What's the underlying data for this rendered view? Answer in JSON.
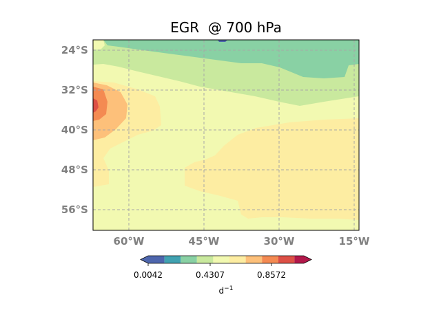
{
  "title": "EGR  @ 700 hPa",
  "map": {
    "lat_labels": [
      "24°S",
      "32°S",
      "40°S",
      "48°S",
      "56°S"
    ],
    "lon_labels": [
      "60°W",
      "45°W",
      "30°W",
      "15°W"
    ],
    "extent": {
      "lon_min": -67,
      "lon_max": -14,
      "lat_min": -61,
      "lat_max": -22
    },
    "gridlines": true
  },
  "colorbar": {
    "colors": [
      "#4e66ad",
      "#41a2b1",
      "#89d1a4",
      "#c9e99e",
      "#f2f9b1",
      "#fdeda2",
      "#fdc07a",
      "#f48a52",
      "#dd5046",
      "#b2184a"
    ],
    "ticks": [
      "0.0042",
      "0.4307",
      "0.8572"
    ],
    "unit": "d",
    "unit_exp": "−1",
    "extend": "both"
  },
  "field_colors": {
    "teal": "#89d1a4",
    "light_green": "#c9e99e",
    "pale_yellow": "#f2f9b1",
    "light_orange": "#fdeda2",
    "orange": "#fdc07a",
    "dark_orange": "#f48a52",
    "red": "#dd5046",
    "blue": "#4e66ad"
  }
}
